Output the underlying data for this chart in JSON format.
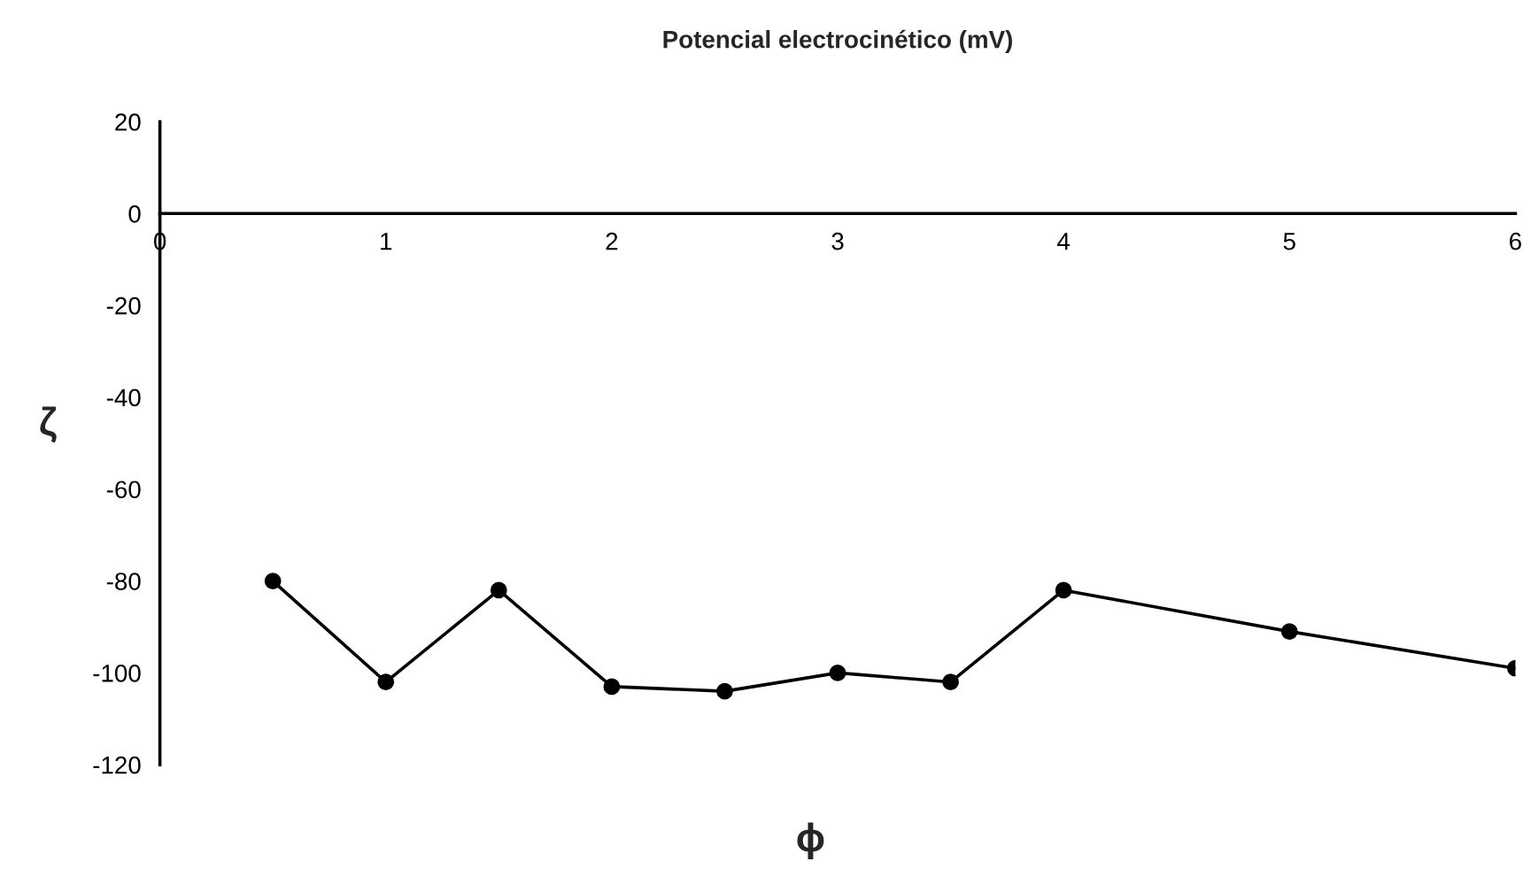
{
  "chart_data": {
    "type": "line",
    "title": "Potencial electrocinético (mV)",
    "xlabel": "ϕ",
    "ylabel": "ζ",
    "x": [
      0.5,
      1,
      1.5,
      2,
      2.5,
      3,
      3.5,
      4,
      5,
      6
    ],
    "series": [
      {
        "color": "#000000",
        "values": [
          -80,
          -102,
          -82,
          -103,
          -104,
          -100,
          -102,
          -82,
          -91,
          -99
        ]
      }
    ],
    "xlim": [
      0,
      6
    ],
    "xticks": [
      0,
      1,
      2,
      3,
      4,
      5,
      6
    ],
    "ylim": [
      -120,
      20
    ],
    "yticks": [
      20,
      0,
      -20,
      -40,
      -60,
      -80,
      -100,
      -120
    ],
    "grid": false,
    "legend": false,
    "marker": "circle",
    "line_style": "solid"
  }
}
